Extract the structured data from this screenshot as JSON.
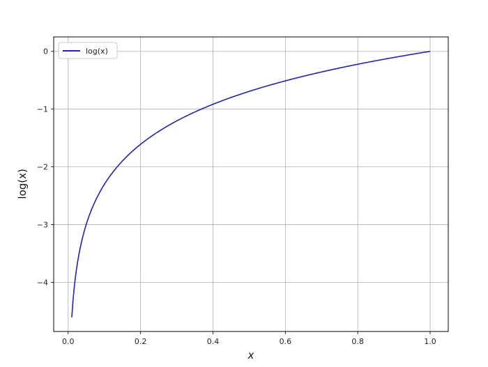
{
  "chart_data": {
    "type": "line",
    "title": "",
    "xlabel": "x",
    "ylabel": "log(x)",
    "xlim": [
      -0.04,
      1.05
    ],
    "ylim": [
      -4.85,
      0.25
    ],
    "xticks": [
      0.0,
      0.2,
      0.4,
      0.6,
      0.8,
      1.0
    ],
    "xtick_labels": [
      "0.0",
      "0.2",
      "0.4",
      "0.6",
      "0.8",
      "1.0"
    ],
    "yticks": [
      0,
      -1,
      -2,
      -3,
      -4
    ],
    "ytick_labels": [
      "0",
      "−1",
      "−2",
      "−3",
      "−4"
    ],
    "grid": true,
    "legend": {
      "placement": "top-left",
      "entries": [
        "log(x)"
      ]
    },
    "series": [
      {
        "name": "log(x)",
        "color": "#1f1fcf",
        "x": [
          0.01,
          0.015,
          0.02,
          0.03,
          0.04,
          0.05,
          0.06,
          0.08,
          0.1,
          0.12,
          0.15,
          0.2,
          0.25,
          0.3,
          0.35,
          0.4,
          0.45,
          0.5,
          0.55,
          0.6,
          0.65,
          0.7,
          0.75,
          0.8,
          0.85,
          0.9,
          0.95,
          1.0
        ],
        "y": [
          -4.605,
          -4.2,
          -3.912,
          -3.507,
          -3.219,
          -2.996,
          -2.813,
          -2.526,
          -2.303,
          -2.12,
          -1.897,
          -1.609,
          -1.386,
          -1.204,
          -1.05,
          -0.916,
          -0.799,
          -0.693,
          -0.598,
          -0.511,
          -0.431,
          -0.357,
          -0.288,
          -0.223,
          -0.163,
          -0.105,
          -0.051,
          0.0
        ]
      }
    ]
  }
}
